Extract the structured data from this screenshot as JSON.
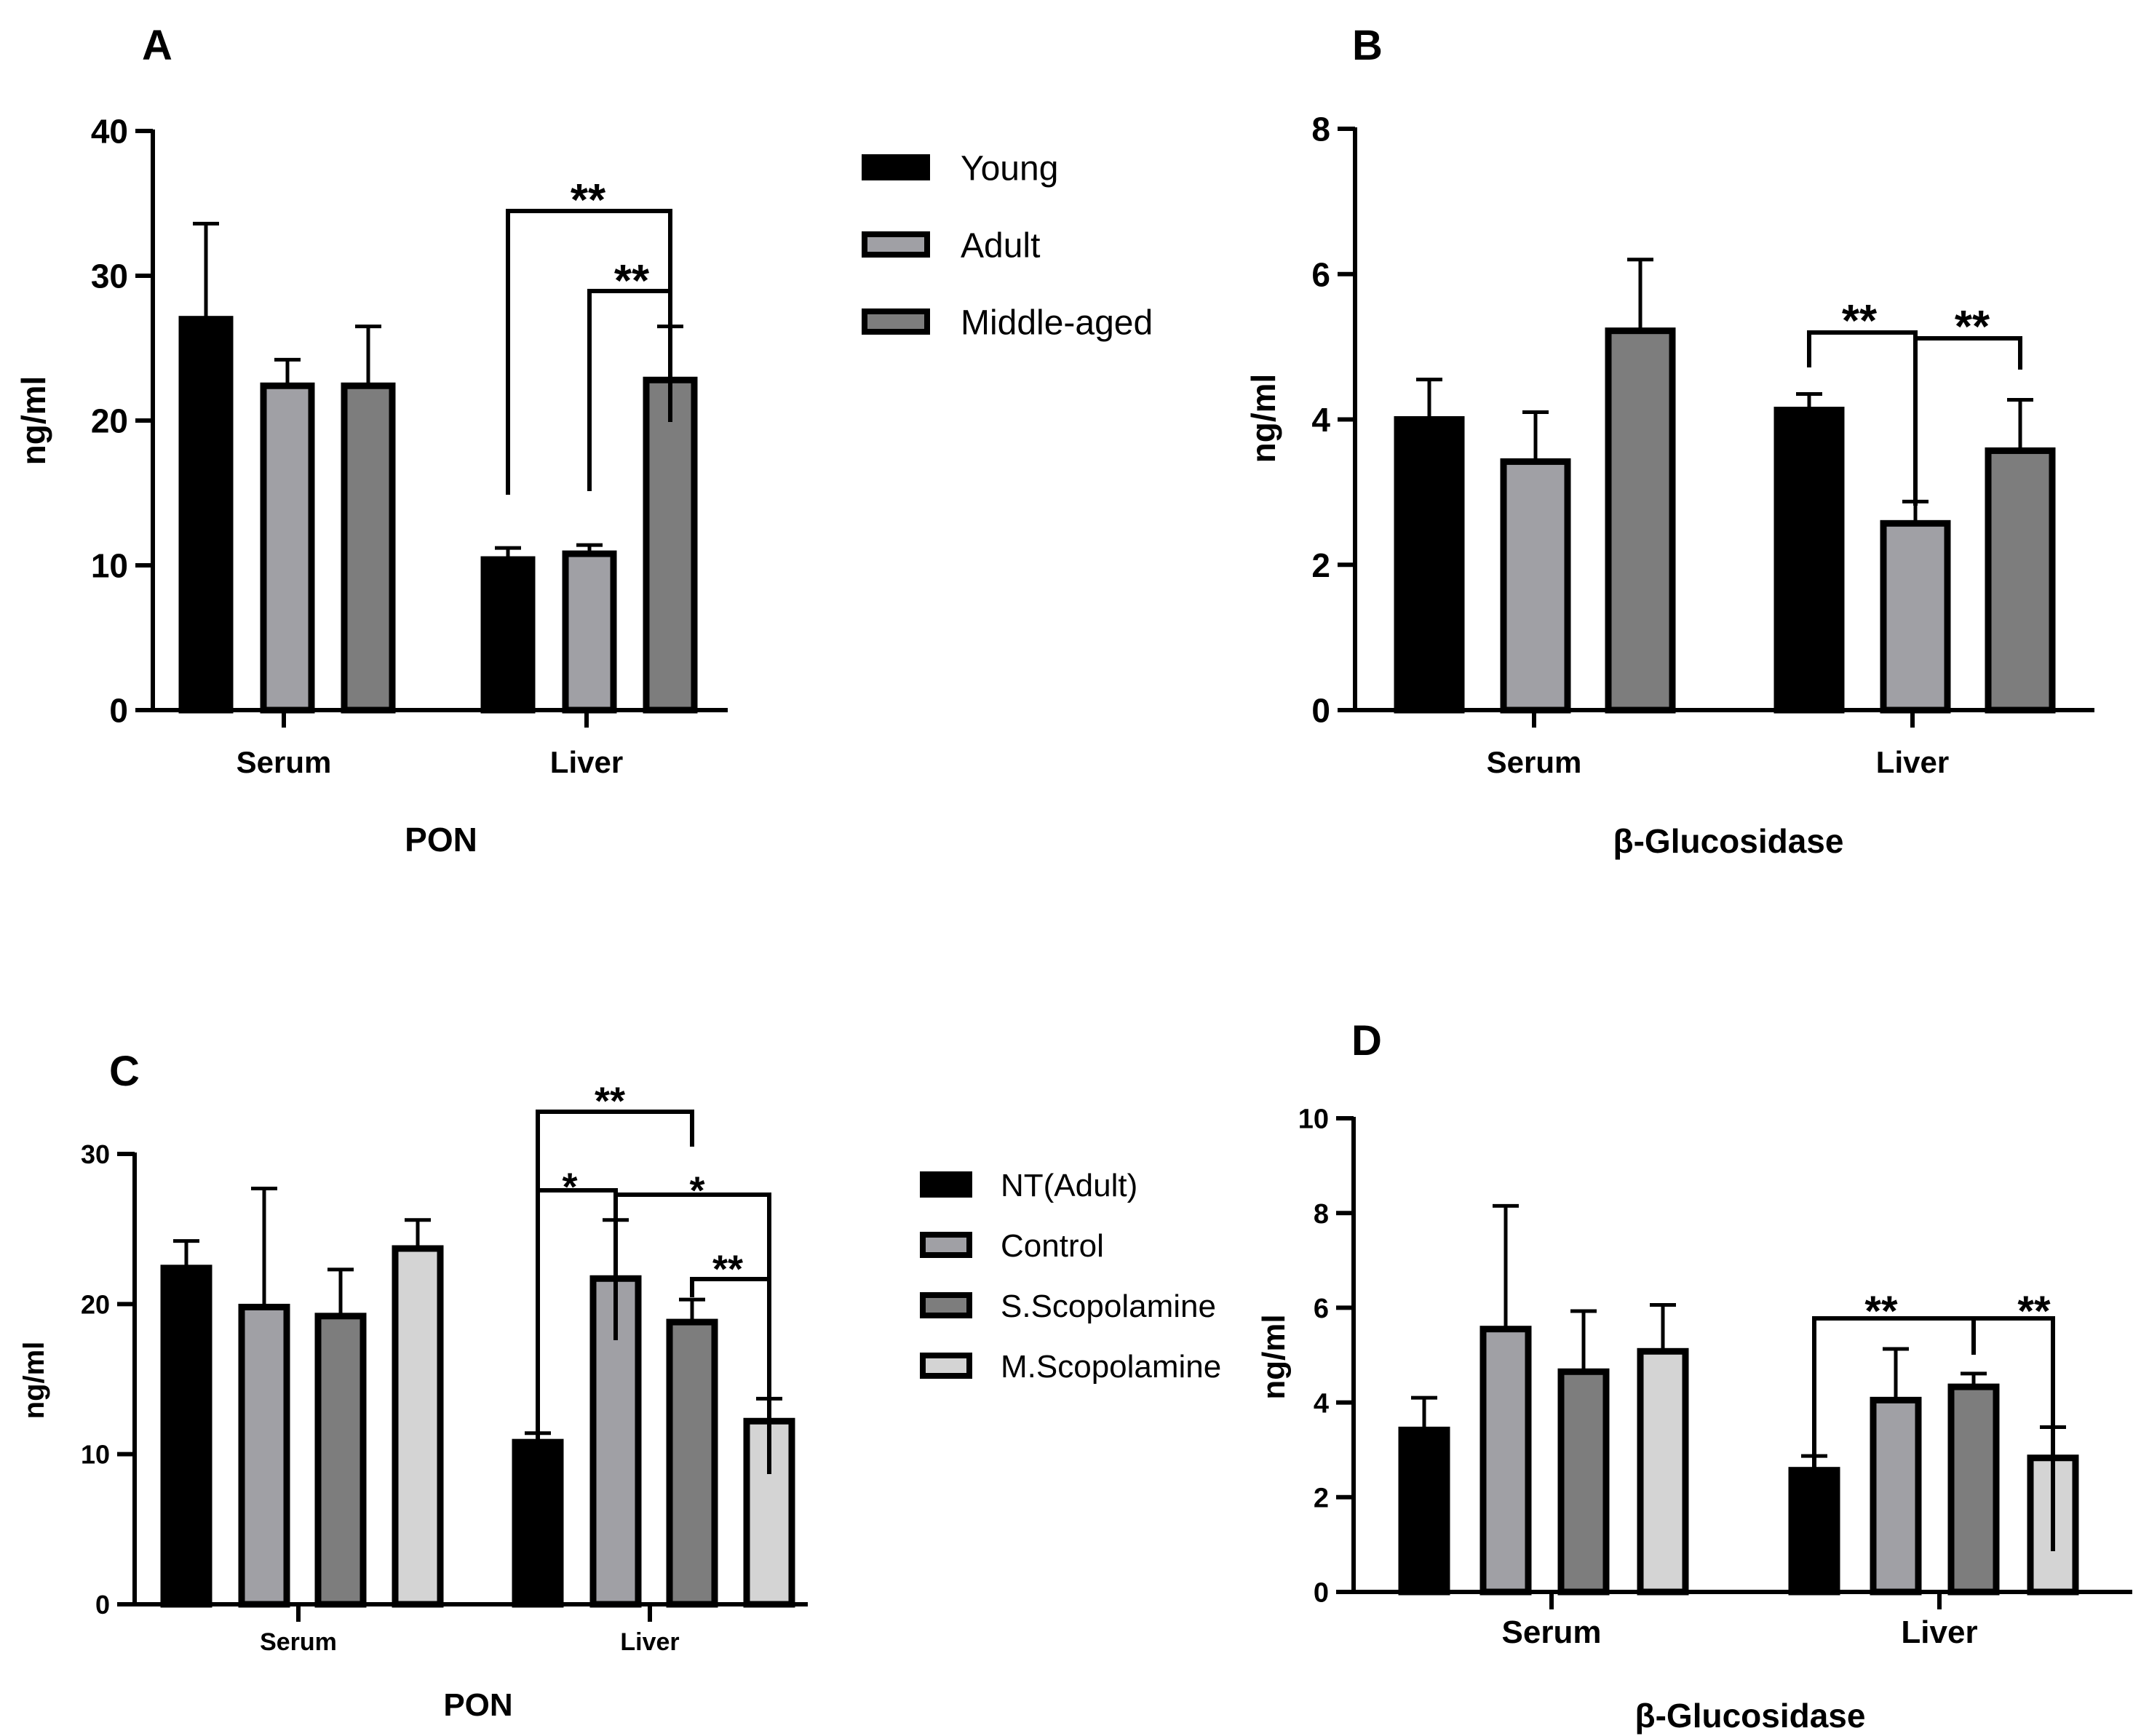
{
  "chart_data": [
    {
      "type": "bar",
      "panel": "A",
      "categories": [
        "Serum",
        "Liver"
      ],
      "series": [
        {
          "name": "Young",
          "values": [
            27.0,
            10.4
          ],
          "errors": [
            6.6,
            0.8
          ],
          "color": "#000000"
        },
        {
          "name": "Adult",
          "values": [
            22.4,
            10.8
          ],
          "errors": [
            1.8,
            0.6
          ],
          "color": "#a0a0a5"
        },
        {
          "name": "Middle-aged",
          "values": [
            22.4,
            22.8
          ],
          "errors": [
            4.1,
            3.7
          ],
          "color": "#7d7d7d"
        }
      ],
      "xlabel": "PON",
      "ylabel": "ng/ml",
      "ylim": [
        0,
        40
      ],
      "yticks": [
        "0",
        "10",
        "20",
        "30",
        "40"
      ],
      "significance": [
        {
          "category": "Liver",
          "from": 0,
          "to": 2,
          "label": "**"
        },
        {
          "category": "Liver",
          "from": 1,
          "to": 2,
          "label": "**"
        }
      ]
    },
    {
      "type": "bar",
      "panel": "B",
      "categories": [
        "Serum",
        "Liver"
      ],
      "series": [
        {
          "name": "Young",
          "values": [
            4.0,
            4.13
          ],
          "errors": [
            0.55,
            0.22
          ],
          "color": "#000000"
        },
        {
          "name": "Adult",
          "values": [
            3.42,
            2.57
          ],
          "errors": [
            0.68,
            0.3
          ],
          "color": "#a0a0a5"
        },
        {
          "name": "Middle-aged",
          "values": [
            5.22,
            3.57
          ],
          "errors": [
            0.98,
            0.7
          ],
          "color": "#7d7d7d"
        }
      ],
      "xlabel": "β-Glucosidase",
      "ylabel": "ng/ml",
      "ylim": [
        0,
        8
      ],
      "yticks": [
        "0",
        "2",
        "4",
        "6",
        "8"
      ],
      "significance": [
        {
          "category": "Liver",
          "from": 0,
          "to": 1,
          "label": "**"
        },
        {
          "category": "Liver",
          "from": 1,
          "to": 2,
          "label": "**"
        }
      ]
    },
    {
      "type": "bar",
      "panel": "C",
      "categories": [
        "Serum",
        "Liver"
      ],
      "series": [
        {
          "name": "NT(Adult)",
          "values": [
            22.4,
            10.8
          ],
          "errors": [
            1.8,
            0.6
          ],
          "color": "#000000"
        },
        {
          "name": "Control",
          "values": [
            19.8,
            21.7
          ],
          "errors": [
            7.9,
            3.9
          ],
          "color": "#a0a0a5"
        },
        {
          "name": "S.Scopolamine",
          "values": [
            19.2,
            18.8
          ],
          "errors": [
            3.1,
            1.5
          ],
          "color": "#7d7d7d"
        },
        {
          "name": "M.Scopolamine",
          "values": [
            23.7,
            12.2
          ],
          "errors": [
            1.9,
            1.5
          ],
          "color": "#d4d4d4"
        }
      ],
      "xlabel": "PON",
      "ylabel": "ng/ml",
      "ylim": [
        0,
        30
      ],
      "yticks": [
        "0",
        "10",
        "20",
        "30"
      ],
      "significance": [
        {
          "category": "Liver",
          "from": 0,
          "to": 2,
          "label": "**"
        },
        {
          "category": "Liver",
          "from": 0,
          "to": 1,
          "label": "*"
        },
        {
          "category": "Liver",
          "from": 1,
          "to": 3,
          "label": "*"
        },
        {
          "category": "Liver",
          "from": 2,
          "to": 3,
          "label": "**"
        }
      ]
    },
    {
      "type": "bar",
      "panel": "D",
      "categories": [
        "Serum",
        "Liver"
      ],
      "series": [
        {
          "name": "NT(Adult)",
          "values": [
            3.42,
            2.57
          ],
          "errors": [
            0.68,
            0.3
          ],
          "color": "#000000"
        },
        {
          "name": "Control",
          "values": [
            5.55,
            4.05
          ],
          "errors": [
            2.6,
            1.08
          ],
          "color": "#a0a0a5"
        },
        {
          "name": "S.Scopolamine",
          "values": [
            4.65,
            4.33
          ],
          "errors": [
            1.28,
            0.28
          ],
          "color": "#7d7d7d"
        },
        {
          "name": "M.Scopolamine",
          "values": [
            5.08,
            2.83
          ],
          "errors": [
            0.98,
            0.65
          ],
          "color": "#d4d4d4"
        }
      ],
      "xlabel": "β-Glucosidase",
      "ylabel": "ng/ml",
      "ylim": [
        0,
        10
      ],
      "yticks": [
        "0",
        "2",
        "4",
        "6",
        "8",
        "10"
      ],
      "significance": [
        {
          "category": "Liver",
          "from": 0,
          "to": 2,
          "label": "**"
        },
        {
          "category": "Liver",
          "from": 2,
          "to": 3,
          "label": "**"
        }
      ]
    }
  ],
  "legends": [
    {
      "items": [
        "Young",
        "Adult",
        "Middle-aged"
      ]
    },
    {
      "items": [
        "NT(Adult)",
        "Control",
        "S.Scopolamine",
        "M.Scopolamine"
      ]
    }
  ]
}
